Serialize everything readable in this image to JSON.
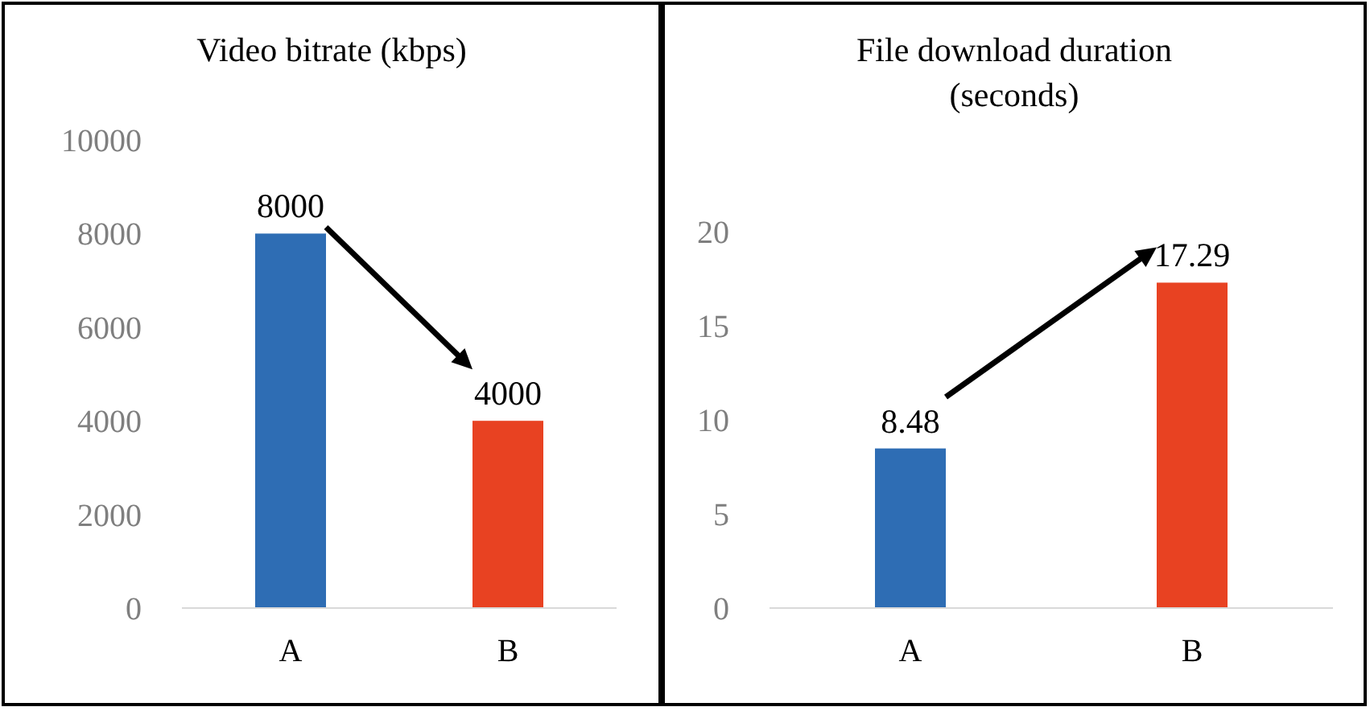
{
  "chart_data": [
    {
      "type": "bar",
      "title": "Video bitrate (kbps)",
      "categories": [
        "A",
        "B"
      ],
      "values": [
        8000,
        4000
      ],
      "colors": [
        "#2e6db4",
        "#e84222"
      ],
      "ylim": [
        0,
        10000
      ],
      "yticks": [
        0,
        2000,
        4000,
        6000,
        8000,
        10000
      ],
      "data_labels": true
    },
    {
      "type": "bar",
      "title": "File download duration (seconds)",
      "categories": [
        "A",
        "B"
      ],
      "values": [
        8.48,
        17.29
      ],
      "colors": [
        "#2e6db4",
        "#e84222"
      ],
      "ylim": [
        0,
        20
      ],
      "yticks": [
        0,
        5,
        10,
        15,
        20
      ],
      "data_labels": true
    }
  ]
}
